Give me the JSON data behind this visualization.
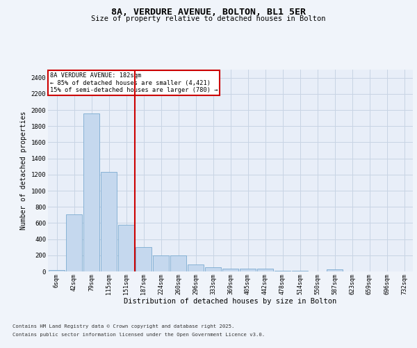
{
  "title": "8A, VERDURE AVENUE, BOLTON, BL1 5ER",
  "subtitle": "Size of property relative to detached houses in Bolton",
  "xlabel": "Distribution of detached houses by size in Bolton",
  "ylabel": "Number of detached properties",
  "categories": [
    "6sqm",
    "42sqm",
    "79sqm",
    "115sqm",
    "151sqm",
    "187sqm",
    "224sqm",
    "260sqm",
    "296sqm",
    "333sqm",
    "369sqm",
    "405sqm",
    "442sqm",
    "478sqm",
    "514sqm",
    "550sqm",
    "587sqm",
    "623sqm",
    "659sqm",
    "696sqm",
    "732sqm"
  ],
  "values": [
    15,
    710,
    1960,
    1235,
    580,
    305,
    200,
    200,
    85,
    50,
    35,
    35,
    35,
    10,
    10,
    0,
    25,
    0,
    0,
    0,
    0
  ],
  "bar_color": "#c5d8ee",
  "bar_edge_color": "#7aaad0",
  "grid_color": "#c8d4e4",
  "bg_color": "#e8eef8",
  "fig_color": "#f0f4fa",
  "vline_color": "#cc0000",
  "vline_index": 5,
  "annotation_text": "8A VERDURE AVENUE: 182sqm\n← 85% of detached houses are smaller (4,421)\n15% of semi-detached houses are larger (780) →",
  "annotation_box_color": "#cc0000",
  "footer_line1": "Contains HM Land Registry data © Crown copyright and database right 2025.",
  "footer_line2": "Contains public sector information licensed under the Open Government Licence v3.0.",
  "ylim": [
    0,
    2500
  ],
  "yticks": [
    0,
    200,
    400,
    600,
    800,
    1000,
    1200,
    1400,
    1600,
    1800,
    2000,
    2200,
    2400
  ]
}
